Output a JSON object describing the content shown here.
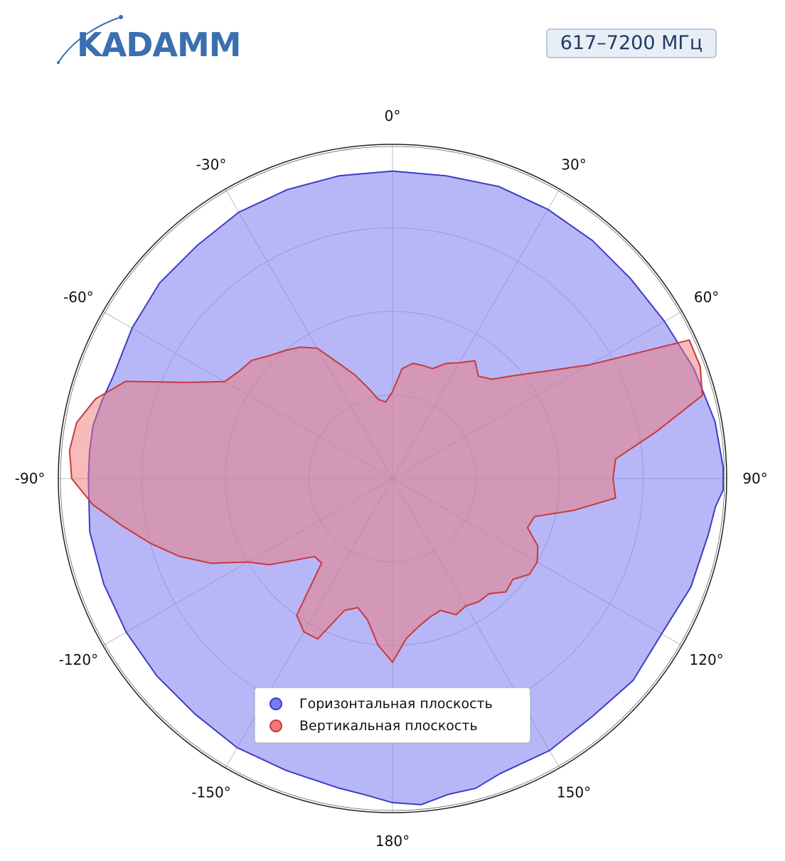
{
  "brand": {
    "name": "KADAMM"
  },
  "badge": {
    "label": "617–7200 МГц"
  },
  "chart_data": {
    "type": "polar-area",
    "angle_unit": "deg",
    "zero_direction": "top",
    "angle_ticks": [
      {
        "angle": 0,
        "label": "0°"
      },
      {
        "angle": 30,
        "label": "30°"
      },
      {
        "angle": 60,
        "label": "60°"
      },
      {
        "angle": 90,
        "label": "90°"
      },
      {
        "angle": 120,
        "label": "120°"
      },
      {
        "angle": 150,
        "label": "150°"
      },
      {
        "angle": 180,
        "label": "180°"
      },
      {
        "angle": -150,
        "label": "-150°"
      },
      {
        "angle": -120,
        "label": "-120°"
      },
      {
        "angle": -90,
        "label": "-90°"
      },
      {
        "angle": -60,
        "label": "-60°"
      },
      {
        "angle": -30,
        "label": "-30°"
      }
    ],
    "radial_range": [
      0,
      1
    ],
    "radial_gridlines": [
      0.25,
      0.5,
      0.75,
      1.0
    ],
    "radial_tick_labels": false,
    "legend_position": "bottom-center",
    "series": [
      {
        "name": "Горизонтальная плоскость",
        "color": "#3c3cc8",
        "fill": "#7b7bf0",
        "points": [
          [
            0,
            0.92
          ],
          [
            10,
            0.92
          ],
          [
            20,
            0.93
          ],
          [
            30,
            0.93
          ],
          [
            40,
            0.93
          ],
          [
            50,
            0.93
          ],
          [
            60,
            0.94
          ],
          [
            70,
            0.96
          ],
          [
            80,
            0.98
          ],
          [
            88,
            0.99
          ],
          [
            92,
            0.99
          ],
          [
            95,
            0.97
          ],
          [
            100,
            0.96
          ],
          [
            110,
            0.95
          ],
          [
            120,
            0.93
          ],
          [
            130,
            0.94
          ],
          [
            140,
            0.93
          ],
          [
            150,
            0.94
          ],
          [
            160,
            0.94
          ],
          [
            165,
            0.96
          ],
          [
            170,
            0.96
          ],
          [
            175,
            0.98
          ],
          [
            180,
            0.97
          ],
          [
            185,
            0.95
          ],
          [
            190,
            0.94
          ],
          [
            200,
            0.93
          ],
          [
            210,
            0.93
          ],
          [
            220,
            0.92
          ],
          [
            230,
            0.92
          ],
          [
            240,
            0.92
          ],
          [
            250,
            0.92
          ],
          [
            260,
            0.92
          ],
          [
            270,
            0.91
          ],
          [
            275,
            0.91
          ],
          [
            280,
            0.91
          ],
          [
            285,
            0.9
          ],
          [
            290,
            0.89
          ],
          [
            300,
            0.9
          ],
          [
            310,
            0.91
          ],
          [
            320,
            0.91
          ],
          [
            330,
            0.92
          ],
          [
            340,
            0.92
          ],
          [
            350,
            0.92
          ]
        ]
      },
      {
        "name": "Вертикальная плоскость",
        "color": "#c83a3a",
        "fill": "#f07878",
        "points": [
          [
            0,
            0.26
          ],
          [
            5,
            0.33
          ],
          [
            10,
            0.35
          ],
          [
            15,
            0.35
          ],
          [
            20,
            0.35
          ],
          [
            25,
            0.38
          ],
          [
            30,
            0.4
          ],
          [
            35,
            0.43
          ],
          [
            40,
            0.4
          ],
          [
            45,
            0.42
          ],
          [
            50,
            0.48
          ],
          [
            55,
            0.56
          ],
          [
            60,
            0.68
          ],
          [
            65,
            0.98
          ],
          [
            70,
            0.98
          ],
          [
            75,
            0.96
          ],
          [
            80,
            0.8
          ],
          [
            85,
            0.67
          ],
          [
            90,
            0.66
          ],
          [
            95,
            0.67
          ],
          [
            100,
            0.55
          ],
          [
            105,
            0.44
          ],
          [
            110,
            0.43
          ],
          [
            115,
            0.48
          ],
          [
            120,
            0.5
          ],
          [
            125,
            0.5
          ],
          [
            130,
            0.47
          ],
          [
            135,
            0.48
          ],
          [
            140,
            0.45
          ],
          [
            145,
            0.45
          ],
          [
            150,
            0.44
          ],
          [
            155,
            0.45
          ],
          [
            160,
            0.42
          ],
          [
            165,
            0.43
          ],
          [
            170,
            0.45
          ],
          [
            175,
            0.48
          ],
          [
            180,
            0.55
          ],
          [
            185,
            0.5
          ],
          [
            190,
            0.43
          ],
          [
            195,
            0.4
          ],
          [
            200,
            0.42
          ],
          [
            205,
            0.53
          ],
          [
            210,
            0.53
          ],
          [
            215,
            0.5
          ],
          [
            220,
            0.33
          ],
          [
            225,
            0.33
          ],
          [
            230,
            0.38
          ],
          [
            235,
            0.45
          ],
          [
            240,
            0.5
          ],
          [
            245,
            0.6
          ],
          [
            250,
            0.68
          ],
          [
            255,
            0.75
          ],
          [
            260,
            0.82
          ],
          [
            265,
            0.9
          ],
          [
            270,
            0.96
          ],
          [
            275,
            0.97
          ],
          [
            280,
            0.96
          ],
          [
            285,
            0.92
          ],
          [
            290,
            0.85
          ],
          [
            295,
            0.68
          ],
          [
            300,
            0.58
          ],
          [
            305,
            0.56
          ],
          [
            310,
            0.55
          ],
          [
            315,
            0.52
          ],
          [
            320,
            0.5
          ],
          [
            325,
            0.48
          ],
          [
            330,
            0.45
          ],
          [
            335,
            0.38
          ],
          [
            340,
            0.33
          ],
          [
            345,
            0.28
          ],
          [
            350,
            0.24
          ],
          [
            355,
            0.23
          ]
        ]
      }
    ]
  }
}
